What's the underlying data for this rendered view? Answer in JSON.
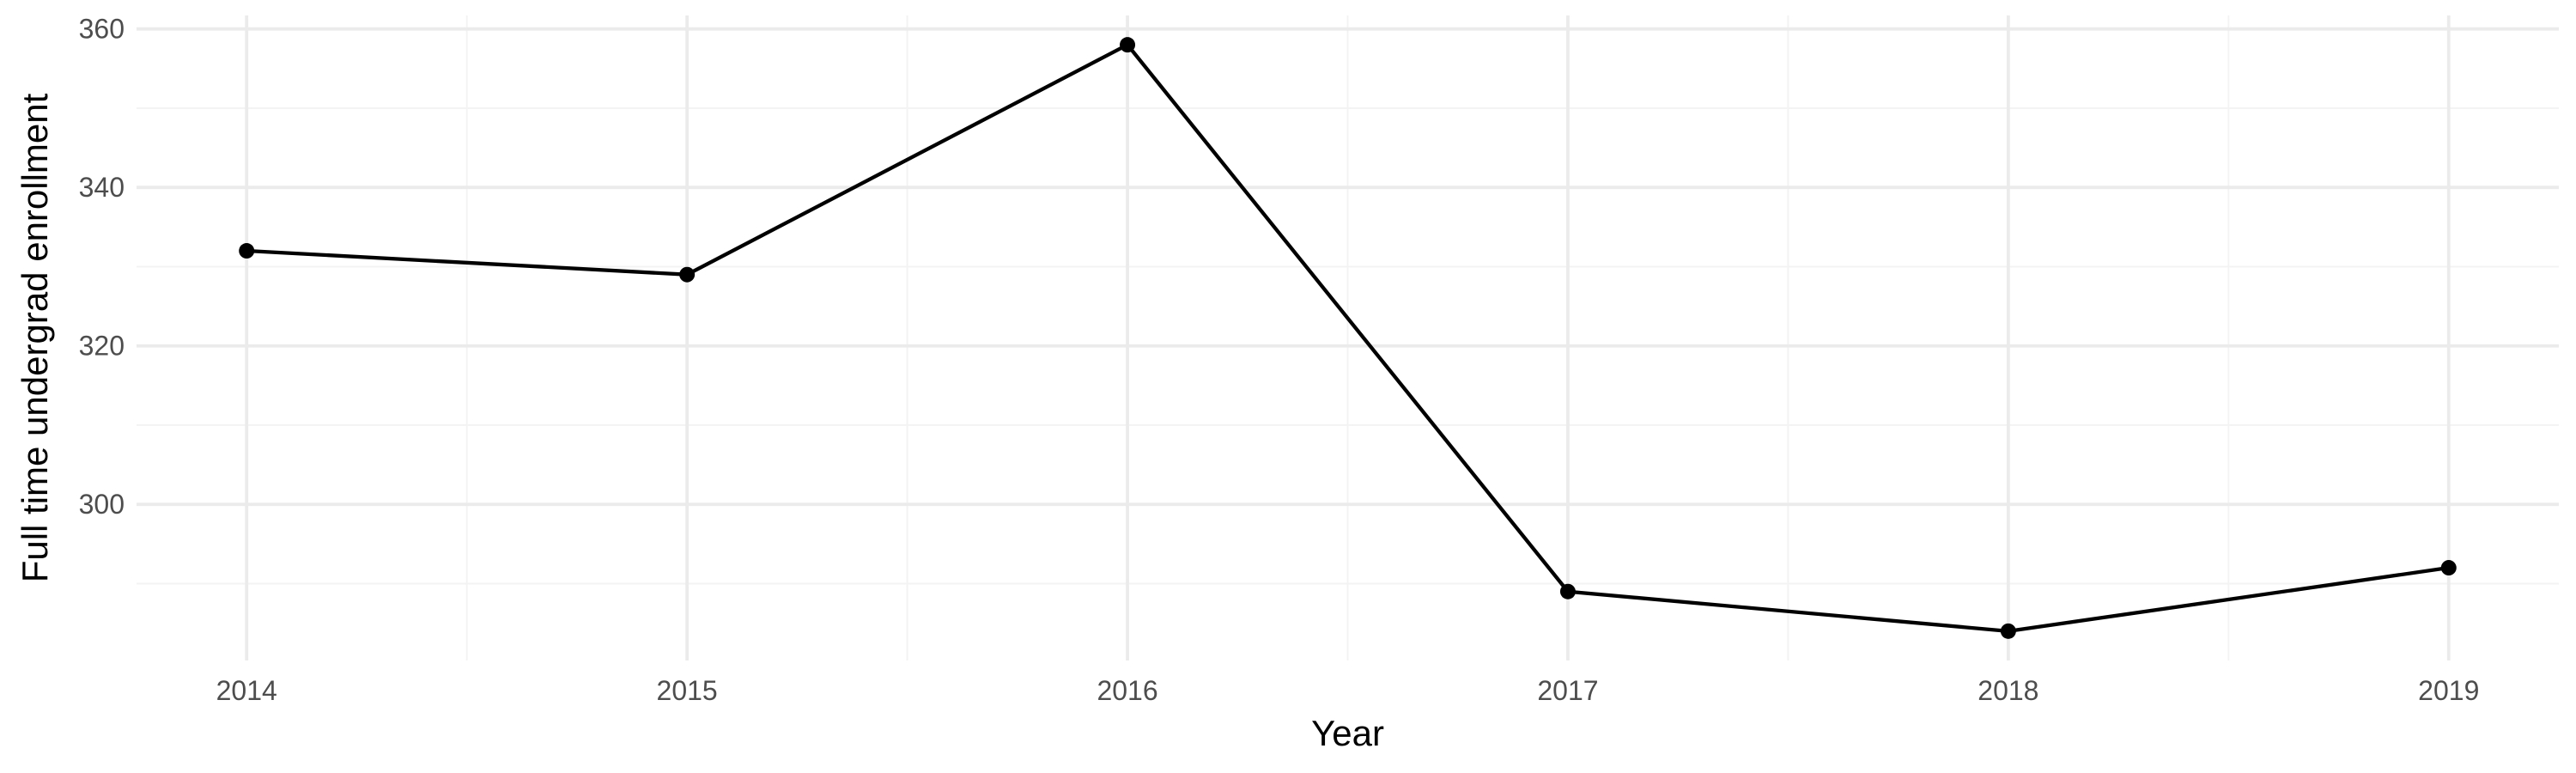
{
  "chart_data": {
    "type": "line",
    "title": "",
    "xlabel": "Year",
    "ylabel": "Full time undergrad enrollment",
    "x": [
      2014,
      2015,
      2016,
      2017,
      2018,
      2019
    ],
    "series": [
      {
        "values": [
          332,
          329,
          358,
          289,
          284,
          292
        ],
        "color": "#000000",
        "markers": true
      }
    ],
    "x_ticks": [
      "2014",
      "2015",
      "2016",
      "2017",
      "2018",
      "2019"
    ],
    "y_ticks": [
      300,
      320,
      340,
      360
    ],
    "xlim": [
      2013.75,
      2019.25
    ],
    "ylim": [
      280.3,
      361.7
    ],
    "grid": true,
    "legend": "none"
  }
}
